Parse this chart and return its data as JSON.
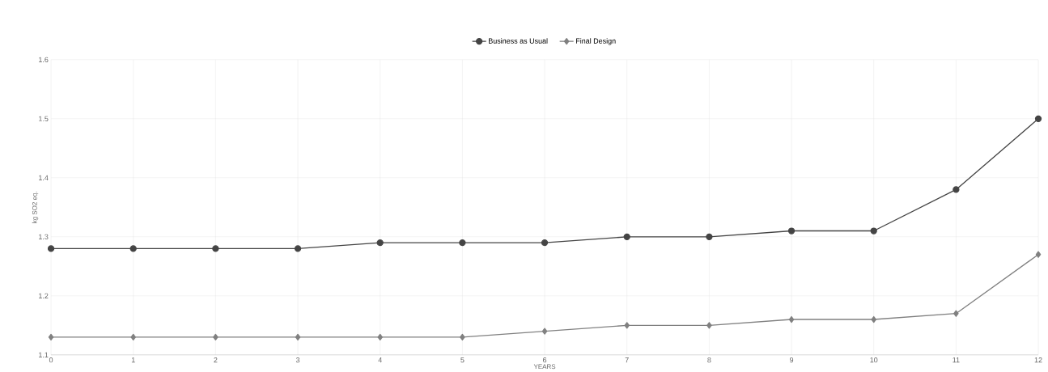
{
  "chart_data": {
    "type": "line",
    "xlabel": "YEARS",
    "ylabel": "kg SO2 eq.",
    "x": [
      0,
      1,
      2,
      3,
      4,
      5,
      6,
      7,
      8,
      9,
      10,
      11,
      12
    ],
    "series": [
      {
        "name": "Business as Usual",
        "color": "#444444",
        "marker": "circle",
        "values": [
          1.28,
          1.28,
          1.28,
          1.28,
          1.29,
          1.29,
          1.29,
          1.3,
          1.3,
          1.31,
          1.31,
          1.38,
          1.5
        ]
      },
      {
        "name": "Final Design",
        "color": "#808080",
        "marker": "diamond",
        "values": [
          1.13,
          1.13,
          1.13,
          1.13,
          1.13,
          1.13,
          1.14,
          1.15,
          1.15,
          1.16,
          1.16,
          1.17,
          1.27
        ]
      }
    ],
    "xlim": [
      0,
      12
    ],
    "xticks": [
      0,
      1,
      2,
      3,
      4,
      5,
      6,
      7,
      8,
      9,
      10,
      11,
      12
    ],
    "ylim": [
      1.1,
      1.6
    ],
    "yticks": [
      1.1,
      1.2,
      1.3,
      1.4,
      1.5,
      1.6
    ],
    "grid": true,
    "legend": "top",
    "line_style": "solid"
  }
}
